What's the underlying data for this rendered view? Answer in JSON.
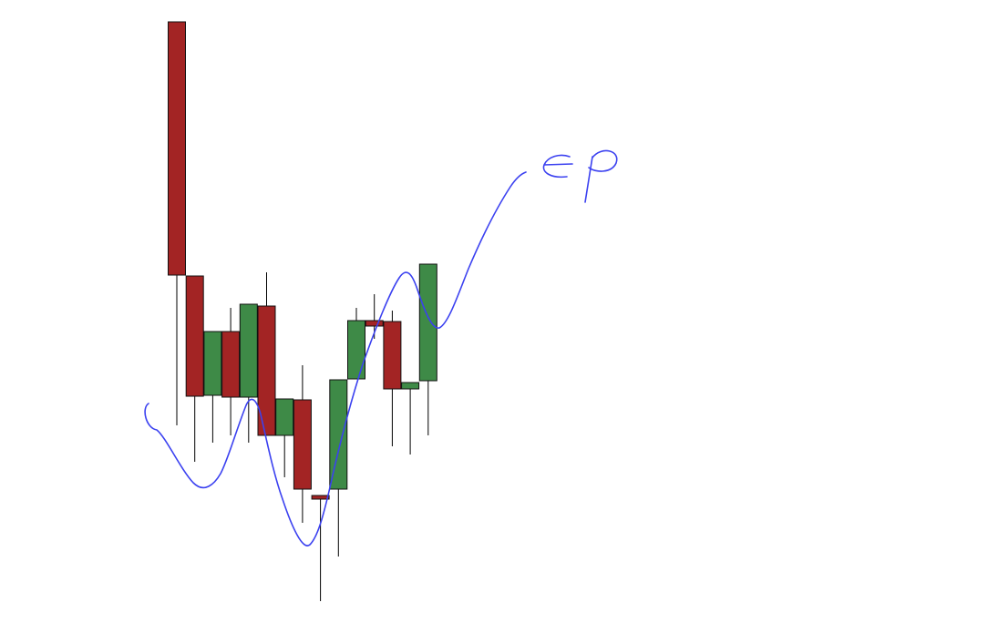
{
  "chart_data": {
    "type": "candlestick",
    "title": "",
    "xlabel": "",
    "ylabel": "",
    "axes_visible": false,
    "grid": false,
    "legend": "none",
    "ylim": [
      0,
      684
    ],
    "colors": {
      "up": "#3e8a47",
      "down": "#a32424",
      "annotation": "#3b41f0",
      "background": "#ffffff"
    },
    "candles": [
      {
        "open": 660,
        "close": 382,
        "high": 660,
        "low": 217
      },
      {
        "open": 381,
        "close": 249,
        "high": 381,
        "low": 177
      },
      {
        "open": 250,
        "close": 320,
        "high": 320,
        "low": 198
      },
      {
        "open": 320,
        "close": 248,
        "high": 346,
        "low": 206
      },
      {
        "open": 248,
        "close": 350,
        "high": 350,
        "low": 198
      },
      {
        "open": 348,
        "close": 206,
        "high": 385,
        "low": 206
      },
      {
        "open": 206,
        "close": 246,
        "high": 246,
        "low": 160
      },
      {
        "open": 245,
        "close": 147,
        "high": 283,
        "low": 110
      },
      {
        "open": 140,
        "close": 136,
        "high": 140,
        "low": 24
      },
      {
        "open": 147,
        "close": 267,
        "high": 267,
        "low": 73
      },
      {
        "open": 268,
        "close": 332,
        "high": 346,
        "low": 268
      },
      {
        "open": 332,
        "close": 326,
        "high": 361,
        "low": 312
      },
      {
        "open": 331,
        "close": 257,
        "high": 343,
        "low": 194
      },
      {
        "open": 257,
        "close": 264,
        "high": 264,
        "low": 185
      },
      {
        "open": 266,
        "close": 394,
        "high": 394,
        "low": 206
      }
    ],
    "annotations": [
      {
        "type": "freehand-line",
        "color": "#3b41f0"
      },
      {
        "type": "handwritten-text",
        "text": "ep",
        "color": "#3b41f0"
      }
    ]
  }
}
